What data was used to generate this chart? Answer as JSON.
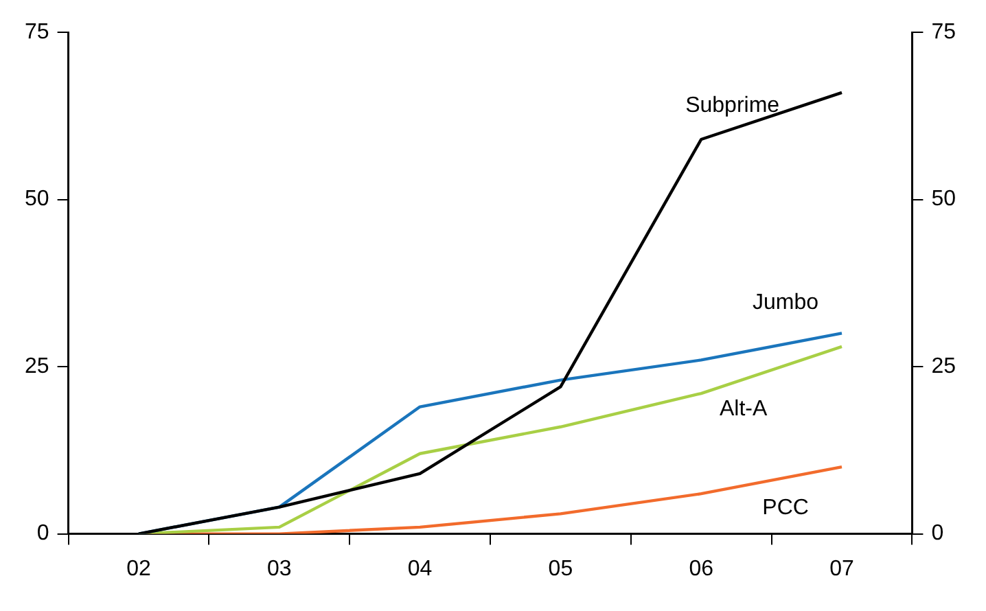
{
  "chart_data": {
    "type": "line",
    "categories": [
      "02",
      "03",
      "04",
      "05",
      "06",
      "07"
    ],
    "series": [
      {
        "name": "Subprime",
        "color": "#000000",
        "values": [
          0,
          4,
          9,
          22,
          59,
          66
        ]
      },
      {
        "name": "Jumbo",
        "color": "#1a75bc",
        "values": [
          0,
          4,
          19,
          23,
          26,
          30
        ]
      },
      {
        "name": "Alt-A",
        "color": "#a8cf45",
        "values": [
          0,
          1,
          12,
          16,
          21,
          28
        ]
      },
      {
        "name": "PCC",
        "color": "#f26b2c",
        "values": [
          0,
          0,
          1,
          3,
          6,
          10
        ]
      }
    ],
    "ylim": [
      0,
      75
    ],
    "yticks": [
      0,
      25,
      50,
      75
    ],
    "y2lim": [
      0,
      75
    ],
    "y2ticks": [
      0,
      25,
      50,
      75
    ],
    "legend": false,
    "marker": "none",
    "line_style": "solid"
  }
}
